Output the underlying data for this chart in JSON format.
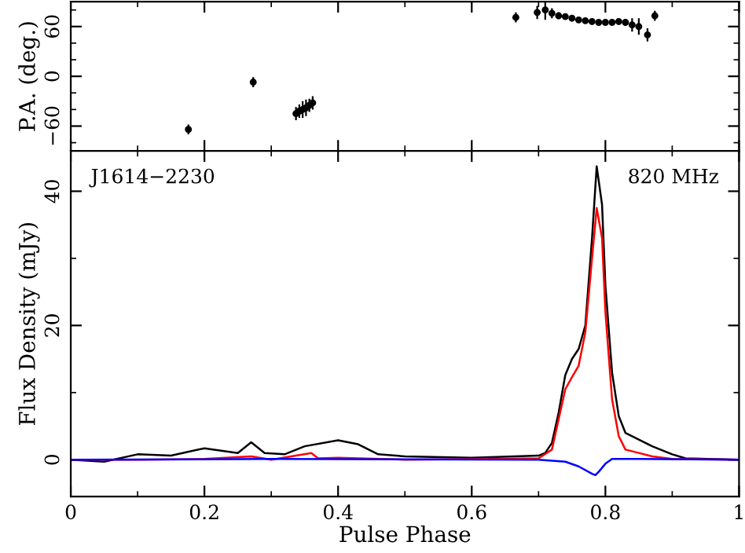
{
  "chart_data": [
    {
      "type": "scatter",
      "ylabel": "P.A. (deg.)",
      "xlim": [
        0,
        1
      ],
      "ylim": [
        -90,
        90
      ],
      "xticks": [
        0,
        0.2,
        0.4,
        0.6,
        0.8,
        1
      ],
      "yticks": [
        {
          "value": -60,
          "label": "−60"
        },
        0,
        60
      ],
      "tick_labels": "y",
      "marker": "circle",
      "grid": false,
      "series": [
        {
          "color": "#000000",
          "x": [
            0.176,
            0.273,
            0.337,
            0.342,
            0.347,
            0.352,
            0.357,
            0.362,
            0.666,
            0.698,
            0.71,
            0.72,
            0.73,
            0.74,
            0.75,
            0.76,
            0.77,
            0.78,
            0.79,
            0.8,
            0.81,
            0.82,
            0.83,
            0.84,
            0.85,
            0.863,
            0.874
          ],
          "values": [
            -64,
            -7,
            -45,
            -42,
            -40,
            -38,
            -35,
            -32,
            71,
            77,
            80,
            76,
            73,
            72,
            70,
            68,
            67,
            66,
            65,
            65,
            65,
            66,
            65,
            62,
            60,
            50,
            73
          ],
          "errors": [
            6,
            6,
            8,
            8,
            10,
            10,
            8,
            8,
            6,
            8,
            12,
            6,
            4,
            3,
            3,
            2,
            2,
            2,
            2,
            2,
            2,
            3,
            4,
            8,
            10,
            8,
            6
          ]
        }
      ]
    },
    {
      "type": "line",
      "xlabel": "Pulse Phase",
      "ylabel": "Flux Density (mJy)",
      "xlim": [
        0,
        1
      ],
      "ylim": [
        -5.5,
        46
      ],
      "xticks": [
        0,
        0.2,
        0.4,
        0.6,
        0.8,
        1
      ],
      "yticks": [
        0,
        20,
        40
      ],
      "grid": false,
      "annotations": [
        "J1614−2230",
        "820 MHz"
      ],
      "series": [
        {
          "color": "#000000",
          "x": [
            0,
            0.05,
            0.1,
            0.15,
            0.2,
            0.25,
            0.27,
            0.29,
            0.32,
            0.35,
            0.4,
            0.43,
            0.46,
            0.5,
            0.6,
            0.7,
            0.71,
            0.72,
            0.73,
            0.74,
            0.75,
            0.76,
            0.77,
            0.78,
            0.787,
            0.795,
            0.8,
            0.81,
            0.82,
            0.83,
            0.85,
            0.87,
            0.9,
            0.92,
            1.0
          ],
          "values": [
            0,
            -0.3,
            0.8,
            0.6,
            1.7,
            1.0,
            2.6,
            1.0,
            0.8,
            2.0,
            2.9,
            2.3,
            0.8,
            0.5,
            0.3,
            0.6,
            1.0,
            2.5,
            7,
            12.6,
            15,
            16.5,
            20,
            33,
            43.7,
            38,
            26,
            13,
            6.5,
            4,
            3,
            2,
            0.8,
            0.2,
            0
          ]
        },
        {
          "color": "#ff0000",
          "x": [
            0,
            0.1,
            0.2,
            0.27,
            0.3,
            0.36,
            0.37,
            0.4,
            0.5,
            0.7,
            0.72,
            0.73,
            0.74,
            0.75,
            0.76,
            0.77,
            0.78,
            0.787,
            0.795,
            0.8,
            0.81,
            0.82,
            0.83,
            0.85,
            0.87,
            0.9,
            1.0
          ],
          "values": [
            0,
            0,
            0.1,
            0.5,
            0,
            1.0,
            0.2,
            0.3,
            0,
            0.2,
            1.5,
            6,
            10.5,
            12.3,
            14,
            19,
            30,
            37.5,
            33,
            22,
            9,
            3.5,
            1.5,
            1.0,
            0.5,
            0.1,
            0
          ]
        },
        {
          "color": "#0000ff",
          "x": [
            0,
            0.3,
            0.7,
            0.74,
            0.76,
            0.78,
            0.785,
            0.79,
            0.8,
            0.81,
            0.85,
            1.0
          ],
          "values": [
            0,
            0.1,
            0,
            -0.3,
            -1.0,
            -2.1,
            -2.3,
            -1.8,
            -0.6,
            0.1,
            0.1,
            0
          ]
        }
      ]
    }
  ]
}
